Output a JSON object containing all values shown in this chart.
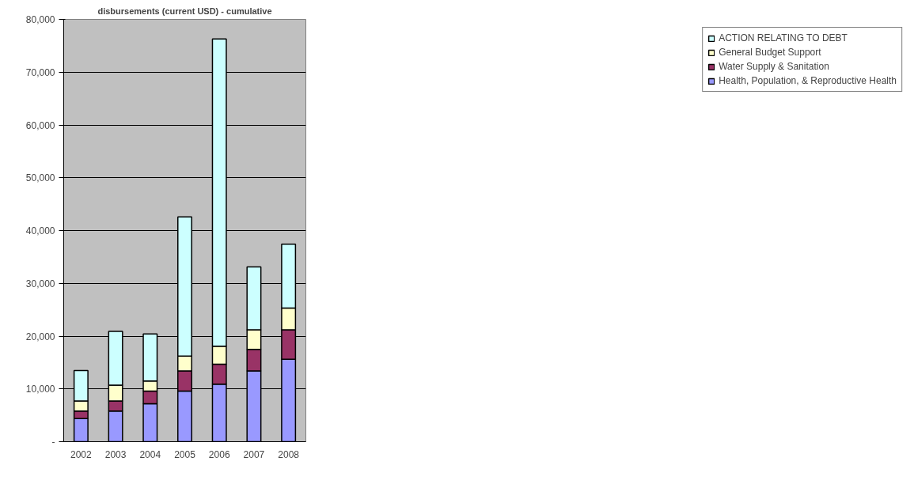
{
  "chart_data": {
    "type": "bar",
    "title": "disbursements (current USD) - cumulative",
    "stacked": true,
    "categories": [
      "2002",
      "2003",
      "2004",
      "2005",
      "2006",
      "2007",
      "2008"
    ],
    "series": [
      {
        "name": "Health, Population, & Reproductive Health",
        "color": "#9999ff",
        "values": [
          4400,
          5800,
          7200,
          9600,
          10900,
          13400,
          15600
        ]
      },
      {
        "name": "Water Supply & Sanitation",
        "color": "#993366",
        "values": [
          1400,
          1900,
          2400,
          3800,
          3800,
          4100,
          5600
        ]
      },
      {
        "name": "General Budget Support",
        "color": "#ffffcc",
        "values": [
          1900,
          3000,
          1900,
          2800,
          3400,
          3700,
          4100
        ]
      },
      {
        "name": "ACTION RELATING TO DEBT",
        "color": "#ccffff",
        "values": [
          5800,
          10200,
          8900,
          26400,
          58200,
          11900,
          12100
        ]
      }
    ],
    "ylim": [
      0,
      80000
    ],
    "yticks": [
      {
        "value": 0,
        "label": "-"
      },
      {
        "value": 10000,
        "label": "10,000"
      },
      {
        "value": 20000,
        "label": "20,000"
      },
      {
        "value": 30000,
        "label": "30,000"
      },
      {
        "value": 40000,
        "label": "40,000"
      },
      {
        "value": 50000,
        "label": "50,000"
      },
      {
        "value": 60000,
        "label": "60,000"
      },
      {
        "value": 70000,
        "label": "70,000"
      },
      {
        "value": 80000,
        "label": "80,000"
      }
    ],
    "grid": "y",
    "legend": "right"
  }
}
